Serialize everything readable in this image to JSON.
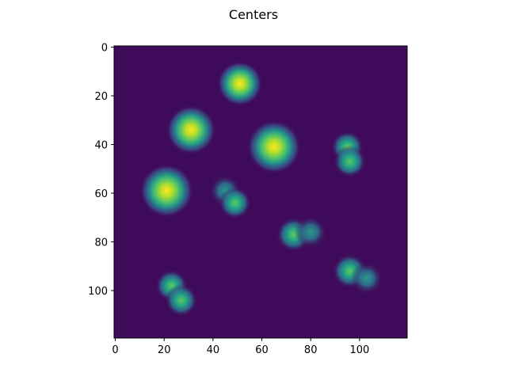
{
  "chart_data": {
    "type": "heatmap",
    "title": "Centers",
    "xlabel": "",
    "ylabel": "",
    "colormap": "viridis",
    "background_color": "#3f0a5a",
    "xlim": [
      -0.5,
      119.5
    ],
    "ylim": [
      119.5,
      -0.5
    ],
    "y_axis_inverted": true,
    "xticks": [
      0,
      20,
      40,
      60,
      80,
      100
    ],
    "xtick_labels": [
      "0",
      "20",
      "40",
      "60",
      "80",
      "100"
    ],
    "yticks": [
      0,
      20,
      40,
      60,
      80,
      100
    ],
    "ytick_labels": [
      "0",
      "20",
      "40",
      "60",
      "80",
      "100"
    ],
    "grid": false,
    "blobs": [
      {
        "x": 51,
        "y": 15,
        "sigma": 4.2,
        "intensity": 1.0
      },
      {
        "x": 31,
        "y": 34,
        "sigma": 4.6,
        "intensity": 1.0
      },
      {
        "x": 65,
        "y": 41,
        "sigma": 5.0,
        "intensity": 1.0
      },
      {
        "x": 21,
        "y": 59,
        "sigma": 5.0,
        "intensity": 1.0
      },
      {
        "x": 95,
        "y": 41,
        "sigma": 3.0,
        "intensity": 0.6
      },
      {
        "x": 96,
        "y": 47,
        "sigma": 3.0,
        "intensity": 0.55
      },
      {
        "x": 45,
        "y": 59,
        "sigma": 3.0,
        "intensity": 0.5
      },
      {
        "x": 49,
        "y": 64,
        "sigma": 3.0,
        "intensity": 0.55
      },
      {
        "x": 73,
        "y": 77,
        "sigma": 3.2,
        "intensity": 0.6
      },
      {
        "x": 80,
        "y": 76,
        "sigma": 3.0,
        "intensity": 0.5
      },
      {
        "x": 96,
        "y": 92,
        "sigma": 3.2,
        "intensity": 0.6
      },
      {
        "x": 103,
        "y": 95,
        "sigma": 3.0,
        "intensity": 0.5
      },
      {
        "x": 23,
        "y": 98,
        "sigma": 3.0,
        "intensity": 0.55
      },
      {
        "x": 27,
        "y": 104,
        "sigma": 3.0,
        "intensity": 0.55
      }
    ]
  }
}
